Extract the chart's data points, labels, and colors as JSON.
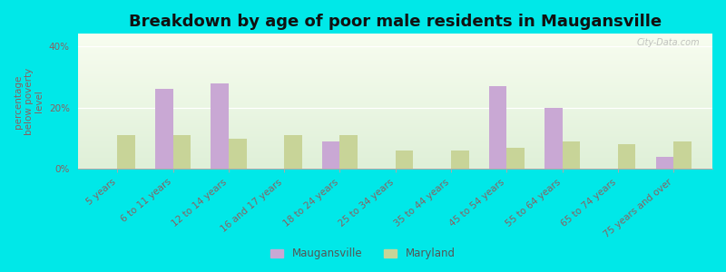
{
  "title": "Breakdown by age of poor male residents in Maugansville",
  "categories": [
    "5 years",
    "6 to 11 years",
    "12 to 14 years",
    "16 and 17 years",
    "18 to 24 years",
    "25 to 34 years",
    "35 to 44 years",
    "45 to 54 years",
    "55 to 64 years",
    "65 to 74 years",
    "75 years and over"
  ],
  "maugansville": [
    0,
    26,
    28,
    0,
    9,
    0,
    0,
    27,
    20,
    0,
    4
  ],
  "maryland": [
    11,
    11,
    10,
    11,
    11,
    6,
    6,
    7,
    9,
    8,
    9
  ],
  "maugansville_color": "#c9a8d4",
  "maryland_color": "#c8d498",
  "bar_width": 0.32,
  "ylim": [
    0,
    44
  ],
  "yticks": [
    0,
    20,
    40
  ],
  "ytick_labels": [
    "0%",
    "20%",
    "40%"
  ],
  "ylabel": "percentage\nbelow poverty\nlevel",
  "outer_bg": "#00e8e8",
  "plot_bg_top": "#f8fdf0",
  "plot_bg_bottom": "#dff0d8",
  "title_fontsize": 13,
  "axis_label_fontsize": 7.5,
  "tick_fontsize": 7.5,
  "legend_labels": [
    "Maugansville",
    "Maryland"
  ],
  "watermark": "City-Data.com",
  "label_color": "#8b6060"
}
